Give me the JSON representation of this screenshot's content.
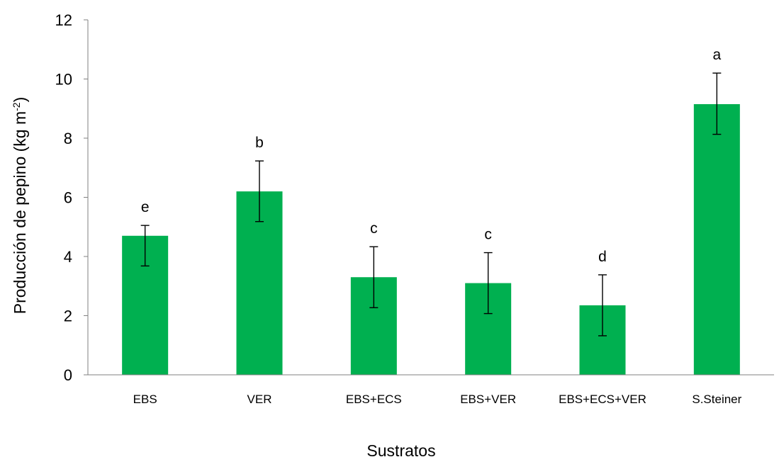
{
  "chart_data": {
    "type": "bar",
    "categories": [
      "EBS",
      "VER",
      "EBS+ECS",
      "EBS+VER",
      "EBS+ECS+VER",
      "S.Steiner"
    ],
    "values": [
      4.7,
      6.2,
      3.3,
      3.1,
      2.35,
      9.15
    ],
    "errors": [
      {
        "low": 3.68,
        "high": 5.05
      },
      {
        "low": 5.18,
        "high": 7.23
      },
      {
        "low": 2.27,
        "high": 4.33
      },
      {
        "low": 2.07,
        "high": 4.13
      },
      {
        "low": 1.32,
        "high": 3.38
      },
      {
        "low": 8.13,
        "high": 10.2
      }
    ],
    "significance_letters": [
      "e",
      "b",
      "c",
      "c",
      "d",
      "a"
    ],
    "ylim": [
      0,
      12
    ],
    "yticks": [
      0,
      2,
      4,
      6,
      8,
      10,
      12
    ],
    "xlabel": "Sustratos",
    "ylabel": {
      "text": "Producción de pepino (kg m",
      "sup": "-2",
      "close": ")"
    },
    "bar_color": "#00b050",
    "grid": false
  }
}
